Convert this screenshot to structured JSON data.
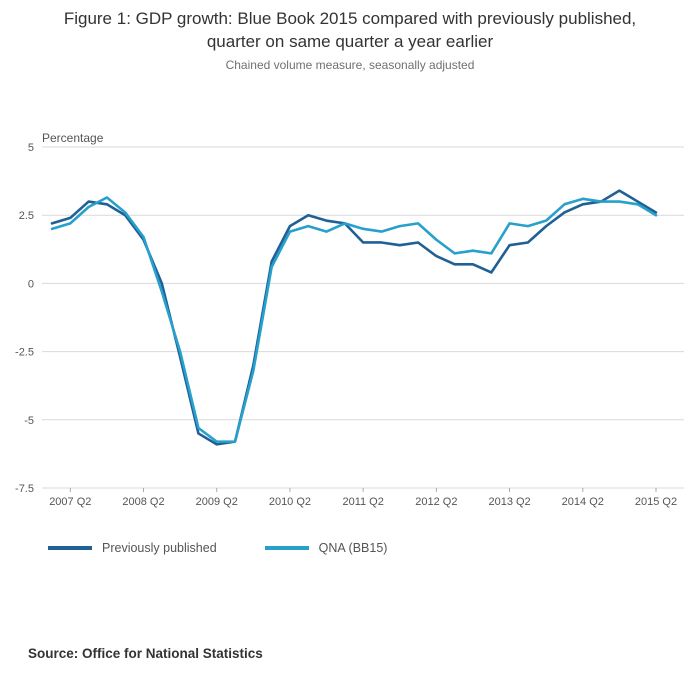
{
  "header": {
    "title_line1": "Figure 1: GDP growth: Blue Book 2015 compared with previously published,",
    "title_line2": "quarter on same quarter a year earlier",
    "subtitle": "Chained volume measure, seasonally adjusted"
  },
  "footer": {
    "source": "Source: Office for National Statistics"
  },
  "chart_data": {
    "type": "line",
    "title": "Figure 1: GDP growth: Blue Book 2015 compared with previously published, quarter on same quarter a year earlier",
    "subtitle": "Chained volume measure, seasonally adjusted",
    "ylabel": "Percentage",
    "xlabel": "",
    "ylim": [
      -7.5,
      5
    ],
    "y_ticks": [
      5,
      2.5,
      0,
      -2.5,
      -5,
      -7.5
    ],
    "grid": "horizontal",
    "legend_position": "bottom-left",
    "x_tick_labels": [
      "2007 Q2",
      "2008 Q2",
      "2009 Q2",
      "2010 Q2",
      "2011 Q2",
      "2012 Q2",
      "2013 Q2",
      "2014 Q2",
      "2015 Q2"
    ],
    "categories": [
      "2007 Q1",
      "2007 Q2",
      "2007 Q3",
      "2007 Q4",
      "2008 Q1",
      "2008 Q2",
      "2008 Q3",
      "2008 Q4",
      "2009 Q1",
      "2009 Q2",
      "2009 Q3",
      "2009 Q4",
      "2010 Q1",
      "2010 Q2",
      "2010 Q3",
      "2010 Q4",
      "2011 Q1",
      "2011 Q2",
      "2011 Q3",
      "2011 Q4",
      "2012 Q1",
      "2012 Q2",
      "2012 Q3",
      "2012 Q4",
      "2013 Q1",
      "2013 Q2",
      "2013 Q3",
      "2013 Q4",
      "2014 Q1",
      "2014 Q2",
      "2014 Q3",
      "2014 Q4",
      "2015 Q1",
      "2015 Q2"
    ],
    "series": [
      {
        "name": "Previously published",
        "color": "#206095",
        "values": [
          2.2,
          2.4,
          3.0,
          2.9,
          2.5,
          1.6,
          0.0,
          -2.7,
          -5.5,
          -5.9,
          -5.8,
          -3.0,
          0.8,
          2.1,
          2.5,
          2.3,
          2.2,
          1.5,
          1.5,
          1.4,
          1.5,
          1.0,
          0.7,
          0.7,
          0.4,
          1.4,
          1.5,
          2.1,
          2.6,
          2.9,
          3.0,
          3.4,
          3.0,
          2.6
        ]
      },
      {
        "name": "QNA (BB15)",
        "color": "#27A0CC",
        "values": [
          2.0,
          2.2,
          2.8,
          3.15,
          2.6,
          1.7,
          -0.3,
          -2.5,
          -5.3,
          -5.8,
          -5.8,
          -3.2,
          0.6,
          1.9,
          2.1,
          1.9,
          2.2,
          2.0,
          1.9,
          2.1,
          2.2,
          1.6,
          1.1,
          1.2,
          1.1,
          2.2,
          2.1,
          2.3,
          2.9,
          3.1,
          3.0,
          3.0,
          2.9,
          2.5
        ]
      }
    ]
  }
}
